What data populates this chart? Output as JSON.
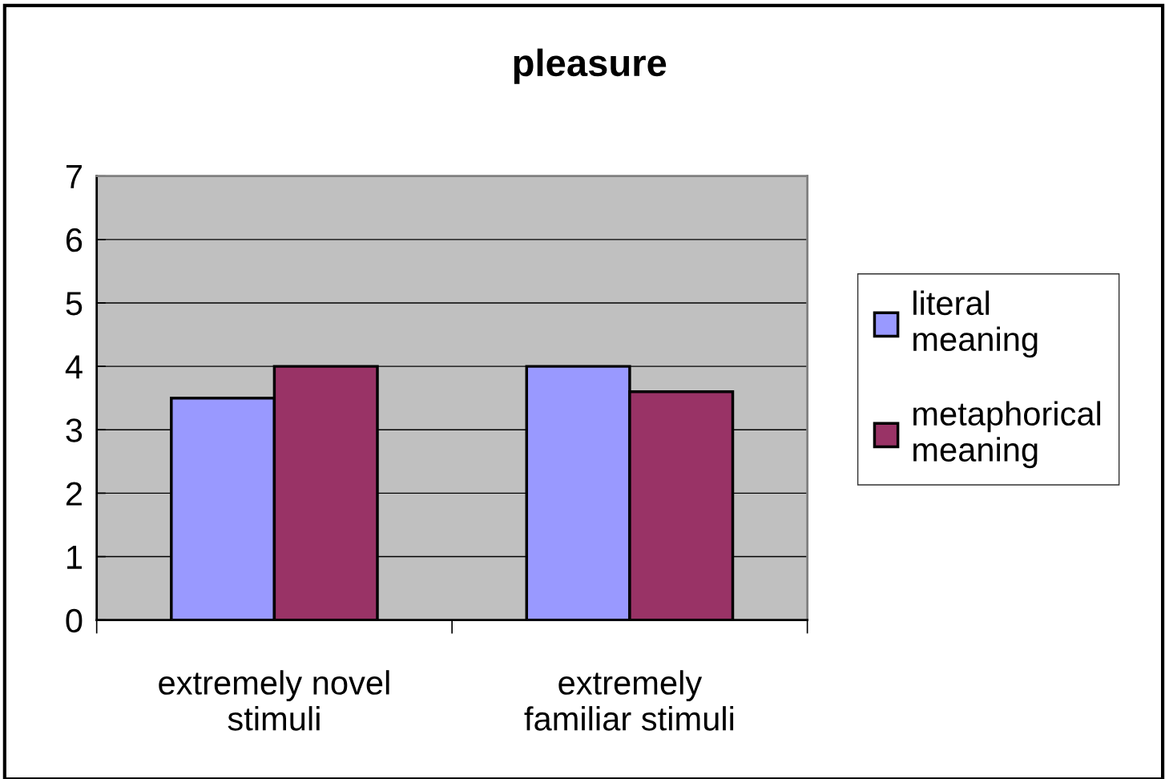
{
  "chart_data": {
    "type": "bar",
    "title": "pleasure",
    "categories": [
      "extremely novel stimuli",
      "extremely familiar stimuli"
    ],
    "series": [
      {
        "name": "literal meaning",
        "color": "#9999ff",
        "values": [
          3.5,
          4.0
        ]
      },
      {
        "name": "metaphorical meaning",
        "color": "#993366",
        "values": [
          4.0,
          3.6
        ]
      }
    ],
    "ylim": [
      0,
      7
    ],
    "yticks": [
      0,
      1,
      2,
      3,
      4,
      5,
      6,
      7
    ],
    "grid": "y",
    "legend": "right"
  }
}
